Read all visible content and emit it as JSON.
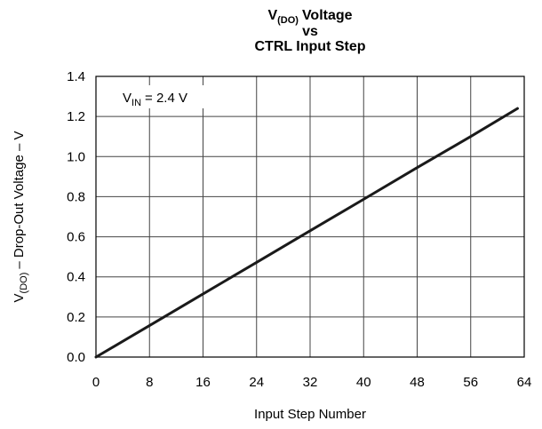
{
  "chart_data": {
    "type": "line",
    "title": [
      "V",
      "(DO)",
      "Voltage",
      "vs",
      "CTRL Input Step"
    ],
    "x_label": "Input Step Number",
    "y_label": [
      "V",
      "(DO)",
      "– Drop-Out Voltage – V"
    ],
    "annotation": [
      "V",
      "IN",
      "= 2.4 V"
    ],
    "x": [
      0,
      8,
      16,
      24,
      32,
      40,
      48,
      56,
      63
    ],
    "series": [
      {
        "color": "#1a1a1a",
        "values": [
          0,
          0.157,
          0.315,
          0.472,
          0.63,
          0.787,
          0.945,
          1.1,
          1.24
        ]
      }
    ],
    "xlim": [
      0,
      64
    ],
    "xticks": [
      0,
      8,
      16,
      24,
      32,
      40,
      48,
      56,
      64
    ],
    "ylim": [
      0,
      1.4
    ],
    "yticks": [
      {
        "value": 0,
        "label": "0.0"
      },
      0.2,
      0.4,
      0.6,
      0.8,
      {
        "value": 1,
        "label": "1.0"
      },
      1.2,
      1.4
    ],
    "grid": true
  }
}
